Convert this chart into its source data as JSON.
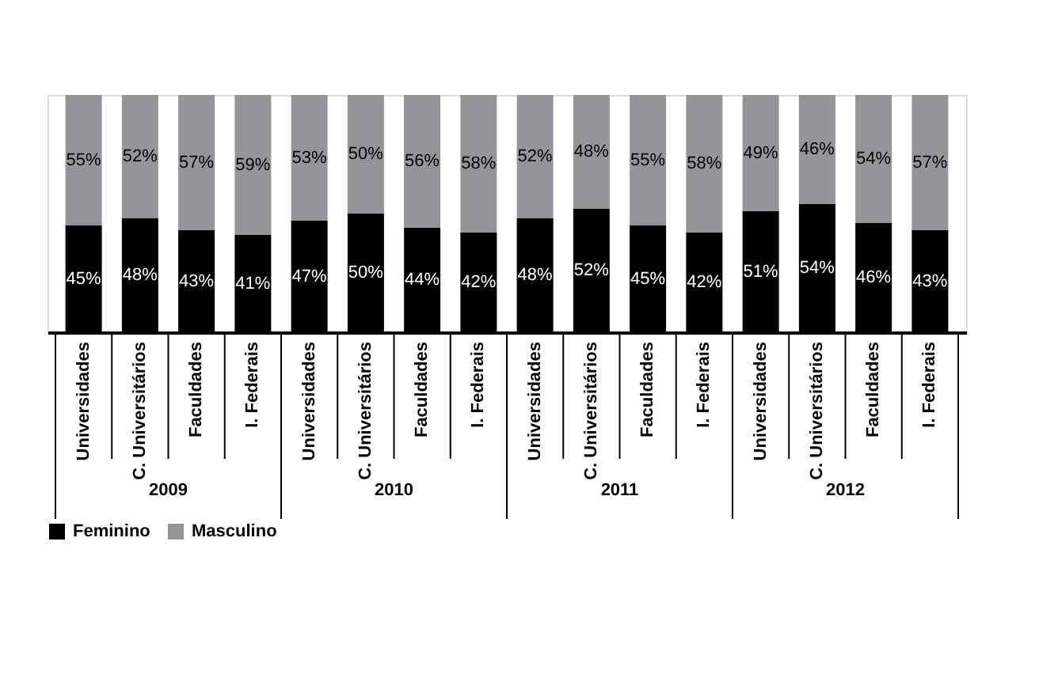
{
  "chart_data": {
    "type": "bar",
    "stacked": true,
    "legend": "bottom",
    "categories": [
      "Universidades",
      "C. Universitários",
      "Faculdades",
      "I. Federais",
      "Universidades",
      "C. Universitários",
      "Faculdades",
      "I. Federais",
      "Universidades",
      "C. Universitários",
      "Faculdades",
      "I. Federais",
      "Universidades",
      "C. Universitários",
      "Faculdades",
      "I. Federais"
    ],
    "annotations": [
      "2009",
      "2010",
      "2011",
      "2012"
    ],
    "series": [
      {
        "name": "Feminino",
        "color": "#000000",
        "values": [
          45,
          48,
          43,
          41,
          47,
          50,
          44,
          42,
          48,
          52,
          45,
          42,
          51,
          54,
          46,
          43
        ],
        "value_labels": [
          "45%",
          "48%",
          "43%",
          "41%",
          "47%",
          "50%",
          "44%",
          "42%",
          "48%",
          "52%",
          "45%",
          "42%",
          "51%",
          "54%",
          "46%",
          "43%"
        ]
      },
      {
        "name": "Masculino",
        "color": "#939598",
        "values": [
          55,
          52,
          57,
          59,
          53,
          50,
          56,
          58,
          52,
          48,
          55,
          58,
          49,
          46,
          54,
          57
        ],
        "value_labels": [
          "55%",
          "52%",
          "57%",
          "59%",
          "53%",
          "50%",
          "56%",
          "58%",
          "52%",
          "48%",
          "55%",
          "58%",
          "49%",
          "46%",
          "54%",
          "57%"
        ]
      }
    ]
  }
}
